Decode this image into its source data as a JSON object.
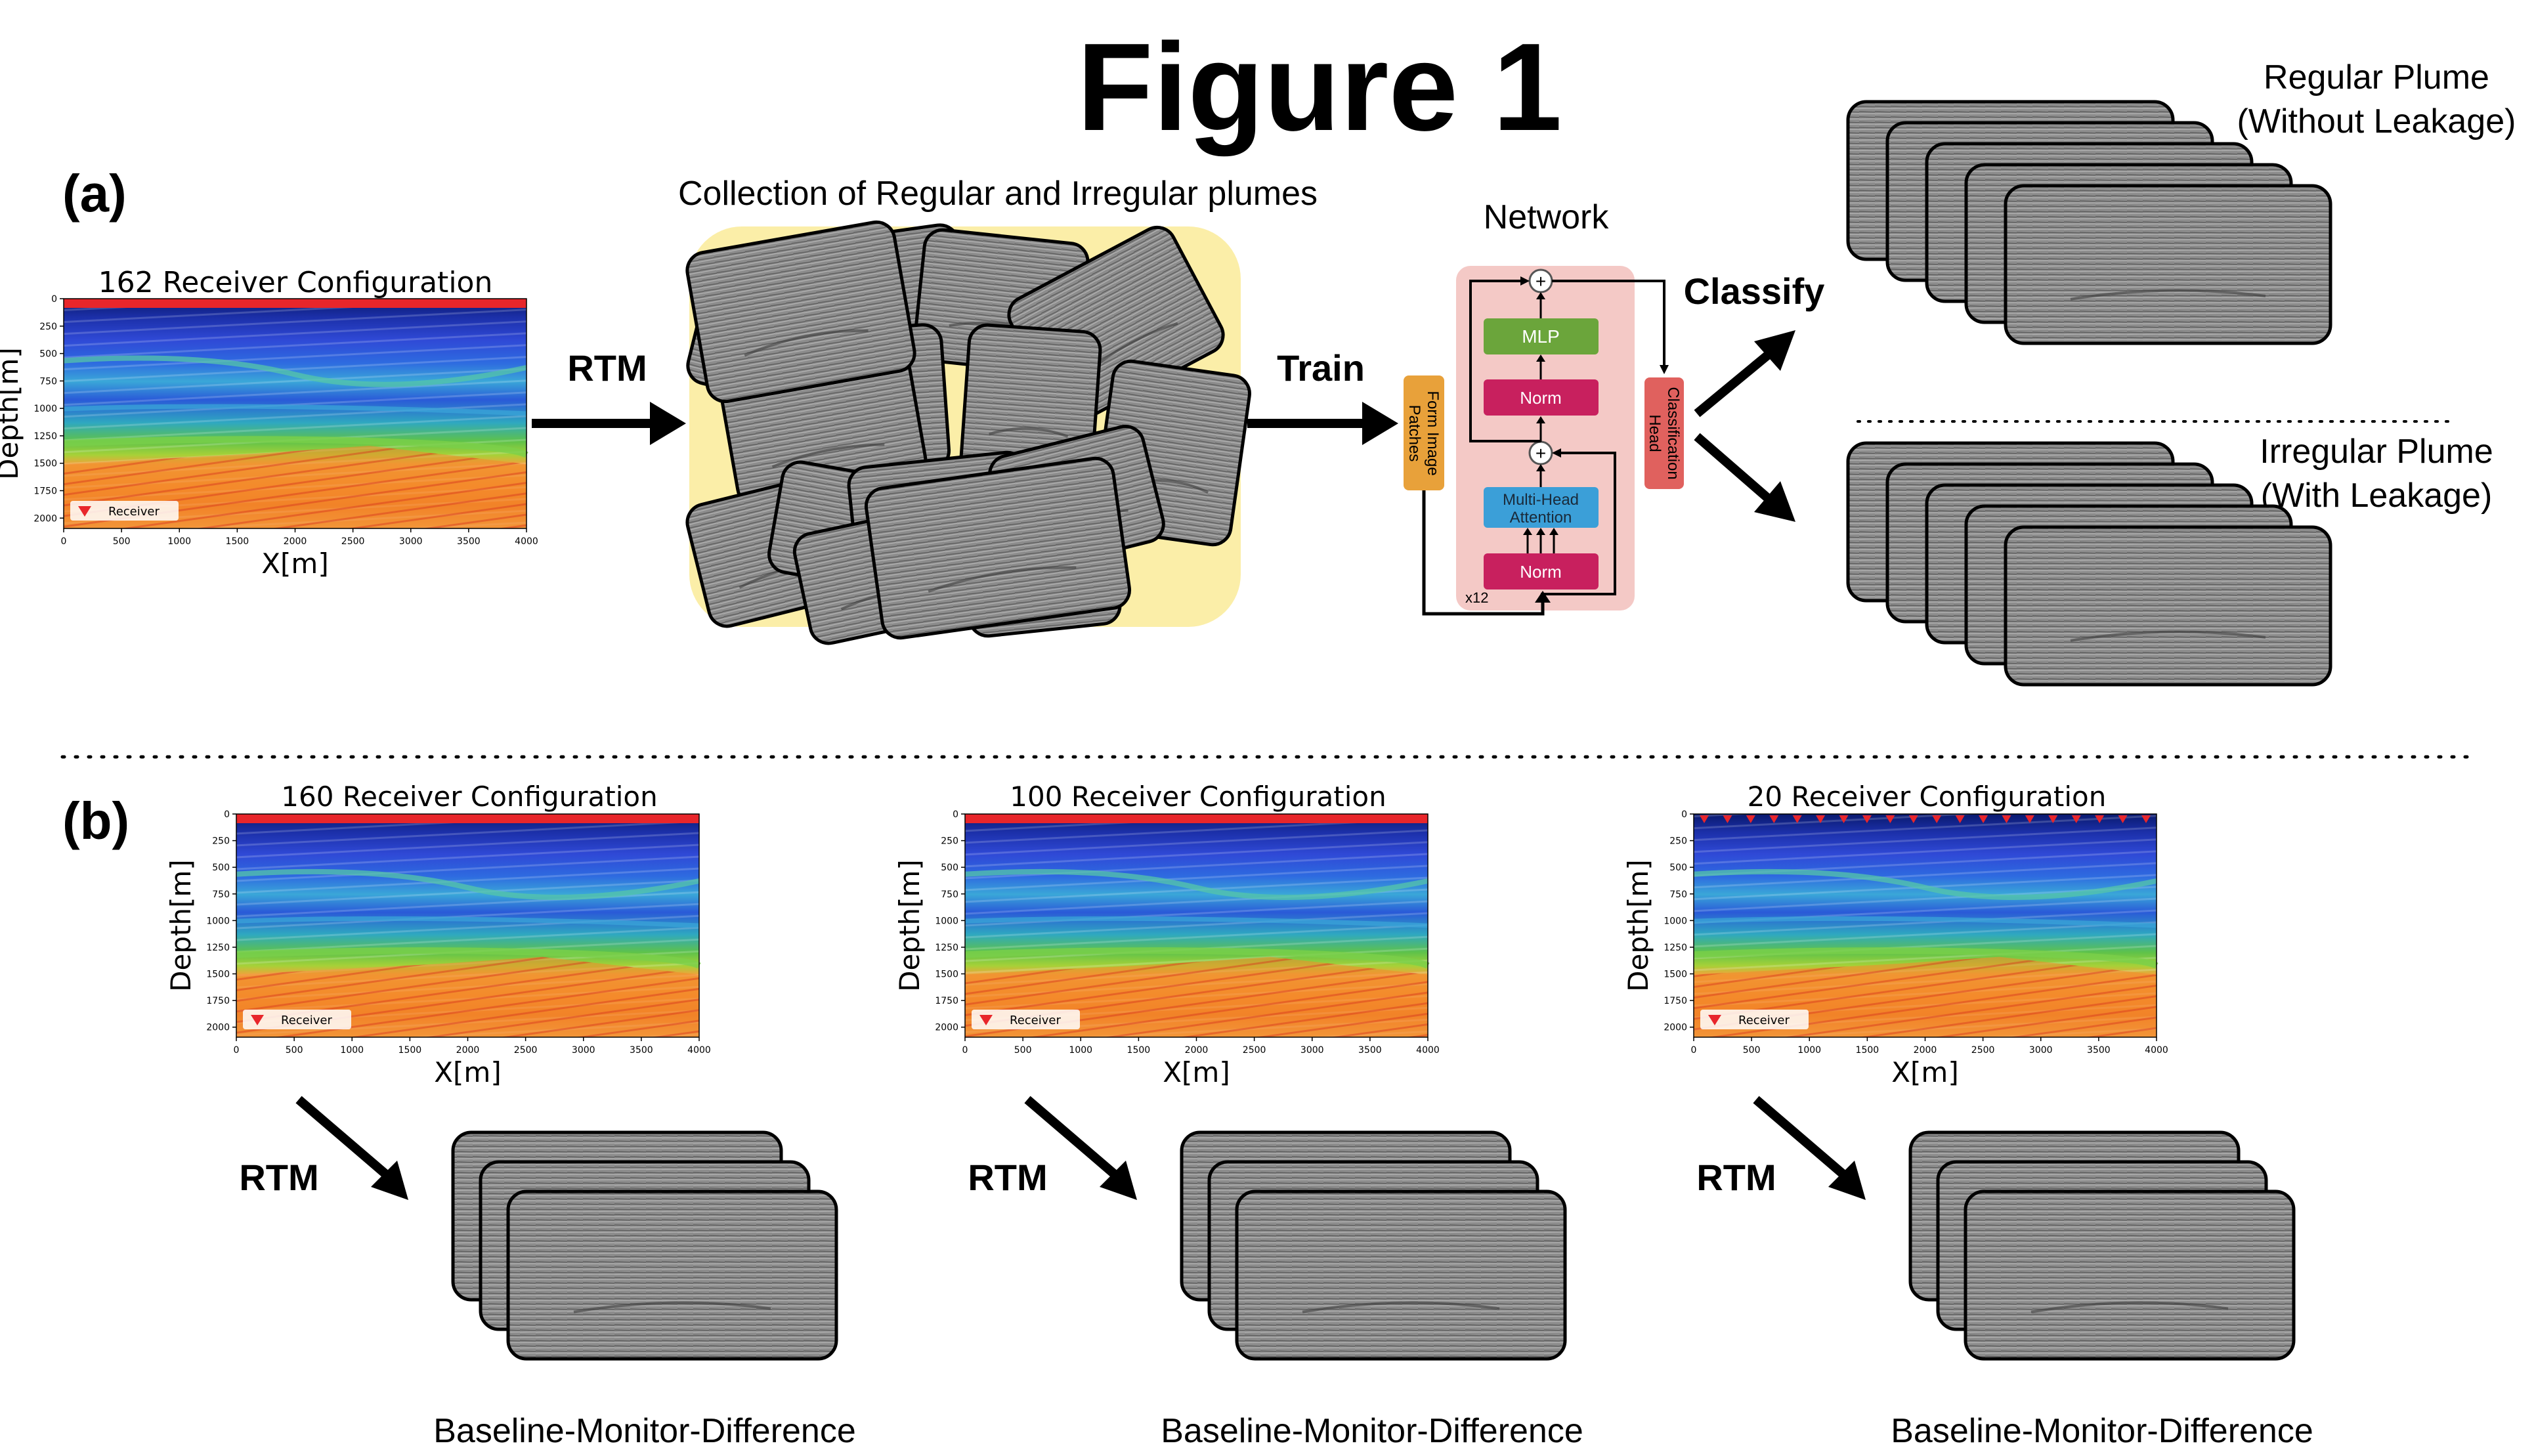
{
  "figure": {
    "title": "Figure 1",
    "panel_a_label": "(a)",
    "panel_b_label": "(b)"
  },
  "panel_a": {
    "config_title": "162 Receiver Configuration",
    "arrow_rtm": "RTM",
    "collection_title": "Collection of Regular and Irregular plumes",
    "arrow_train": "Train",
    "network_title": "Network",
    "patches_label_1": "Form Image",
    "patches_label_2": "Patches",
    "mlp_label": "MLP",
    "norm_label": "Norm",
    "mha_label_1": "Multi-Head",
    "mha_label_2": "Attention",
    "repeat_label": "x12",
    "plus_symbol": "+",
    "head_label_1": "Classification",
    "head_label_2": "Head",
    "classify_label": "Classify",
    "regular_title_1": "Regular Plume",
    "regular_title_2": "(Without Leakage)",
    "irregular_title_1": "Irregular Plume",
    "irregular_title_2": "(With Leakage)"
  },
  "seismic_axes": {
    "ylabel": "Depth[m]",
    "xlabel": "X[m]",
    "x_ticks": [
      "0",
      "500",
      "1000",
      "1500",
      "2000",
      "2500",
      "3000",
      "3500",
      "4000"
    ],
    "y_ticks": [
      "0",
      "250",
      "500",
      "750",
      "1000",
      "1250",
      "1500",
      "1750",
      "2000"
    ],
    "legend_label": "Receiver"
  },
  "panel_b": {
    "configs": [
      {
        "title": "160 Receiver Configuration",
        "arrow": "RTM",
        "caption": "Baseline-Monitor-Difference"
      },
      {
        "title": "100 Receiver Configuration",
        "arrow": "RTM",
        "caption": "Baseline-Monitor-Difference"
      },
      {
        "title": "20 Receiver Configuration",
        "arrow": "RTM",
        "caption": "Baseline-Monitor-Difference"
      }
    ]
  },
  "colors": {
    "receiver_red": "#e8262b",
    "collection_bg": "#fbeea8",
    "network_bg": "#f4c9c6",
    "mlp_green": "#6ba53b",
    "norm_magenta": "#c8205e",
    "attention_blue": "#3b9fd8",
    "patches_orange": "#e8a13a",
    "head_red": "#e0615e",
    "seismic_gray": "#8a8a8a"
  }
}
